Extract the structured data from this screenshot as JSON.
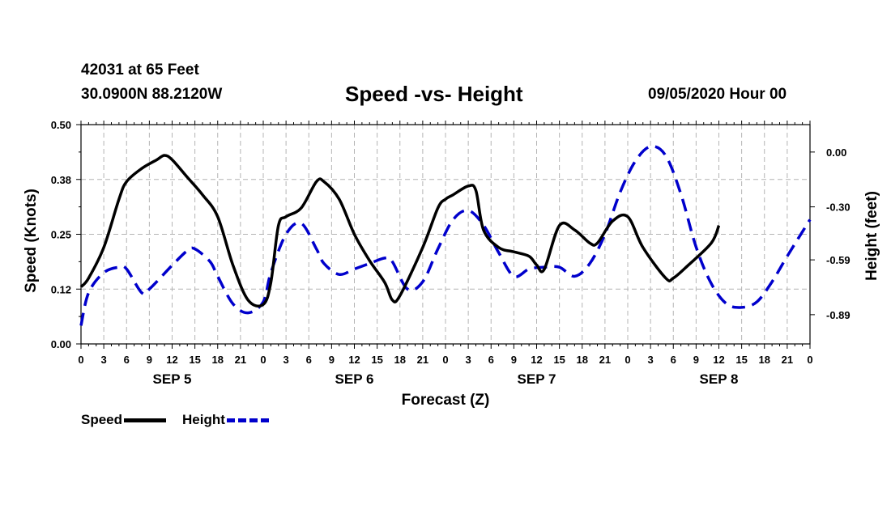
{
  "header": {
    "station": "42031 at 65 Feet",
    "coords": "30.0900N 88.2120W",
    "title": "Speed -vs- Height",
    "datetime": "09/05/2020 Hour 00"
  },
  "legend": {
    "speed_label": "Speed",
    "height_label": "Height"
  },
  "colors": {
    "speed": "#000000",
    "height": "#0000cc",
    "grid": "#b4b4b4"
  },
  "chart_data": {
    "type": "line",
    "title": "Speed -vs- Height",
    "xlabel": "Forecast (Z)",
    "ylabel_left": "Speed (Knots)",
    "ylabel_right": "Height (feet)",
    "x_hour_range": [
      0,
      96
    ],
    "x_tick_labels": [
      "0",
      "3",
      "6",
      "9",
      "12",
      "15",
      "18",
      "21",
      "0",
      "3",
      "6",
      "9",
      "12",
      "15",
      "18",
      "21",
      "0",
      "3",
      "6",
      "9",
      "12",
      "15",
      "18",
      "21",
      "0",
      "3",
      "6",
      "9",
      "12",
      "15",
      "18",
      "21",
      "0"
    ],
    "day_labels": [
      {
        "label": "SEP 5",
        "hour": 12
      },
      {
        "label": "SEP 6",
        "hour": 36
      },
      {
        "label": "SEP 7",
        "hour": 60
      },
      {
        "label": "SEP 8",
        "hour": 84
      }
    ],
    "left_axis": {
      "ylim": [
        0,
        0.5
      ],
      "ticks": [
        "0.00",
        "0.12",
        "0.25",
        "0.38",
        "0.50"
      ],
      "tick_values": [
        0,
        0.125,
        0.25,
        0.375,
        0.5
      ]
    },
    "right_axis": {
      "ylim": [
        -1.05,
        0.15
      ],
      "ticks": [
        "0.00",
        "-0.30",
        "-0.59",
        "-0.89"
      ],
      "tick_values": [
        0,
        -0.3,
        -0.59,
        -0.89
      ]
    },
    "series": [
      {
        "name": "Speed",
        "axis": "left",
        "style": "solid",
        "points": [
          [
            0,
            0.13
          ],
          [
            1,
            0.15
          ],
          [
            3,
            0.22
          ],
          [
            5,
            0.33
          ],
          [
            6,
            0.37
          ],
          [
            8,
            0.4
          ],
          [
            10,
            0.42
          ],
          [
            11,
            0.43
          ],
          [
            12,
            0.42
          ],
          [
            14,
            0.38
          ],
          [
            16,
            0.34
          ],
          [
            18,
            0.29
          ],
          [
            20,
            0.18
          ],
          [
            22,
            0.1
          ],
          [
            24,
            0.09
          ],
          [
            25,
            0.14
          ],
          [
            26,
            0.27
          ],
          [
            27,
            0.29
          ],
          [
            29,
            0.31
          ],
          [
            31,
            0.37
          ],
          [
            32,
            0.37
          ],
          [
            34,
            0.33
          ],
          [
            36,
            0.25
          ],
          [
            38,
            0.19
          ],
          [
            40,
            0.14
          ],
          [
            41,
            0.1
          ],
          [
            42,
            0.11
          ],
          [
            45,
            0.22
          ],
          [
            47,
            0.31
          ],
          [
            48,
            0.33
          ],
          [
            49,
            0.34
          ],
          [
            51,
            0.36
          ],
          [
            52,
            0.35
          ],
          [
            53,
            0.26
          ],
          [
            55,
            0.22
          ],
          [
            57,
            0.21
          ],
          [
            59,
            0.2
          ],
          [
            60,
            0.18
          ],
          [
            61,
            0.17
          ],
          [
            63,
            0.27
          ],
          [
            65,
            0.26
          ],
          [
            67,
            0.23
          ],
          [
            68,
            0.23
          ],
          [
            70,
            0.28
          ],
          [
            72,
            0.29
          ],
          [
            74,
            0.22
          ],
          [
            77,
            0.15
          ],
          [
            78,
            0.15
          ],
          [
            80,
            0.18
          ],
          [
            83,
            0.23
          ],
          [
            84,
            0.27
          ]
        ]
      },
      {
        "name": "Height",
        "axis": "right",
        "style": "dashed",
        "points": [
          [
            0,
            -0.95
          ],
          [
            1,
            -0.77
          ],
          [
            3,
            -0.66
          ],
          [
            5,
            -0.63
          ],
          [
            6,
            -0.64
          ],
          [
            8,
            -0.77
          ],
          [
            9,
            -0.75
          ],
          [
            12,
            -0.62
          ],
          [
            14,
            -0.54
          ],
          [
            15,
            -0.53
          ],
          [
            17,
            -0.6
          ],
          [
            18,
            -0.68
          ],
          [
            20,
            -0.83
          ],
          [
            22,
            -0.88
          ],
          [
            24,
            -0.82
          ],
          [
            25,
            -0.66
          ],
          [
            27,
            -0.45
          ],
          [
            29,
            -0.39
          ],
          [
            31,
            -0.53
          ],
          [
            32,
            -0.61
          ],
          [
            34,
            -0.67
          ],
          [
            36,
            -0.64
          ],
          [
            38,
            -0.61
          ],
          [
            40,
            -0.58
          ],
          [
            41,
            -0.6
          ],
          [
            43,
            -0.75
          ],
          [
            45,
            -0.71
          ],
          [
            47,
            -0.53
          ],
          [
            49,
            -0.37
          ],
          [
            51,
            -0.32
          ],
          [
            53,
            -0.4
          ],
          [
            55,
            -0.55
          ],
          [
            57,
            -0.68
          ],
          [
            59,
            -0.64
          ],
          [
            61,
            -0.63
          ],
          [
            63,
            -0.63
          ],
          [
            65,
            -0.68
          ],
          [
            67,
            -0.61
          ],
          [
            69,
            -0.45
          ],
          [
            71,
            -0.22
          ],
          [
            73,
            -0.05
          ],
          [
            75,
            0.03
          ],
          [
            77,
            -0.02
          ],
          [
            79,
            -0.23
          ],
          [
            81,
            -0.52
          ],
          [
            83,
            -0.72
          ],
          [
            85,
            -0.83
          ],
          [
            87,
            -0.85
          ],
          [
            89,
            -0.82
          ],
          [
            91,
            -0.71
          ],
          [
            93,
            -0.57
          ],
          [
            96,
            -0.37
          ]
        ]
      }
    ]
  }
}
